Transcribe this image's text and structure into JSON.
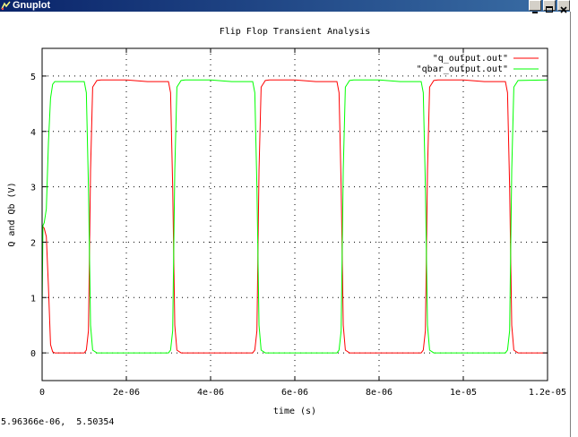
{
  "window": {
    "title": "Gnuplot",
    "icon": "gnuplot-icon",
    "buttons": [
      "minimize-icon",
      "maximize-icon",
      "close-icon"
    ],
    "title_color": "#0a246a"
  },
  "status": {
    "coordinates": "5.96366e-06,  5.50354"
  },
  "chart_data": {
    "type": "line",
    "title": "Flip Flop Transient Analysis",
    "xlabel": "time (s)",
    "ylabel": "Q and Qb (V)",
    "xlim": [
      0,
      1.2e-05
    ],
    "ylim": [
      -0.5,
      5.5
    ],
    "xticks": [
      0,
      2e-06,
      4e-06,
      6e-06,
      8e-06,
      1e-05,
      1.2e-05
    ],
    "xtick_labels": [
      "0",
      "2e-06",
      "4e-06",
      "6e-06",
      "8e-06",
      "1e-05",
      "1.2e-05"
    ],
    "yticks": [
      0,
      1,
      2,
      3,
      4,
      5
    ],
    "ytick_labels": [
      "0",
      "1",
      "2",
      "3",
      "4",
      "5"
    ],
    "grid": true,
    "legend_position": "top-right",
    "series": [
      {
        "name": "\"q_output.out\"",
        "color": "#ff0000",
        "x": [
          0,
          5e-08,
          1e-07,
          1.5e-07,
          2e-07,
          2.5e-07,
          3e-07,
          1e-06,
          1.05e-06,
          1.1e-06,
          1.15e-06,
          1.2e-06,
          1.3e-06,
          1.4e-06,
          2e-06,
          2.5e-06,
          3e-06,
          3.05e-06,
          3.1e-06,
          3.15e-06,
          3.2e-06,
          3.3e-06,
          5e-06,
          5.05e-06,
          5.1e-06,
          5.15e-06,
          5.2e-06,
          5.3e-06,
          5.4e-06,
          6e-06,
          6.5e-06,
          7e-06,
          7.05e-06,
          7.1e-06,
          7.15e-06,
          7.2e-06,
          7.3e-06,
          9e-06,
          9.05e-06,
          9.1e-06,
          9.15e-06,
          9.2e-06,
          9.3e-06,
          9.4e-06,
          1e-05,
          1.05e-05,
          1.1e-05,
          1.105e-05,
          1.11e-05,
          1.115e-05,
          1.12e-05,
          1.13e-05,
          1.2e-05
        ],
        "y": [
          2.3,
          2.25,
          2.1,
          1.2,
          0.15,
          0.02,
          0,
          0,
          0.05,
          0.4,
          3.3,
          4.8,
          4.92,
          4.93,
          4.93,
          4.9,
          4.9,
          4.7,
          3.0,
          0.5,
          0.05,
          0,
          0,
          0.05,
          0.4,
          3.3,
          4.8,
          4.92,
          4.93,
          4.93,
          4.9,
          4.9,
          4.7,
          3.0,
          0.5,
          0.05,
          0,
          0,
          0.05,
          0.4,
          3.3,
          4.8,
          4.92,
          4.93,
          4.93,
          4.9,
          4.9,
          4.7,
          3.0,
          0.5,
          0.05,
          0,
          0
        ]
      },
      {
        "name": "\"qbar_output.out\"",
        "color": "#00ff00",
        "x": [
          0,
          2e-08,
          5e-08,
          1e-07,
          1.5e-07,
          2e-07,
          2.5e-07,
          3e-07,
          4e-07,
          1e-06,
          1.05e-06,
          1.1e-06,
          1.15e-06,
          1.2e-06,
          1.3e-06,
          3e-06,
          3.05e-06,
          3.1e-06,
          3.15e-06,
          3.2e-06,
          3.3e-06,
          3.4e-06,
          4e-06,
          4.5e-06,
          5e-06,
          5.05e-06,
          5.1e-06,
          5.15e-06,
          5.2e-06,
          5.3e-06,
          7e-06,
          7.05e-06,
          7.1e-06,
          7.15e-06,
          7.2e-06,
          7.3e-06,
          7.4e-06,
          8e-06,
          8.5e-06,
          9e-06,
          9.05e-06,
          9.1e-06,
          9.15e-06,
          9.2e-06,
          9.3e-06,
          1.1e-05,
          1.105e-05,
          1.11e-05,
          1.115e-05,
          1.12e-05,
          1.13e-05,
          1.2e-05
        ],
        "y": [
          0.8,
          2.3,
          2.35,
          2.6,
          3.8,
          4.6,
          4.85,
          4.9,
          4.9,
          4.9,
          4.7,
          3.0,
          0.5,
          0.05,
          0,
          0,
          0.05,
          0.4,
          3.3,
          4.8,
          4.92,
          4.93,
          4.93,
          4.9,
          4.9,
          4.7,
          3.0,
          0.5,
          0.05,
          0,
          0,
          0.05,
          0.4,
          3.3,
          4.8,
          4.92,
          4.93,
          4.93,
          4.9,
          4.9,
          4.7,
          3.0,
          0.5,
          0.05,
          0,
          0,
          0.05,
          0.4,
          3.3,
          4.8,
          4.92,
          4.93
        ]
      }
    ]
  }
}
